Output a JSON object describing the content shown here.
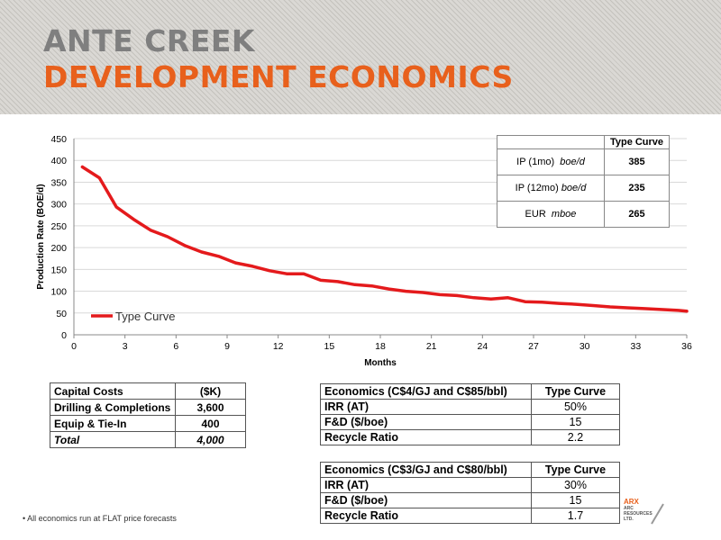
{
  "header": {
    "title_line1": "ANTE CREEK",
    "title_line2": "DEVELOPMENT ECONOMICS"
  },
  "colors": {
    "title_gray": "#7f7f7f",
    "title_orange": "#e8601c",
    "series_red": "#e41a1c"
  },
  "chart_data": {
    "type": "line",
    "xlabel": "Months",
    "ylabel": "Production Rate (BOE/d)",
    "xlim": [
      0,
      36
    ],
    "ylim": [
      0,
      450
    ],
    "xticks": [
      0,
      3,
      6,
      9,
      12,
      15,
      18,
      21,
      24,
      27,
      30,
      33,
      36
    ],
    "yticks": [
      0,
      50,
      100,
      150,
      200,
      250,
      300,
      350,
      400,
      450
    ],
    "grid": "horizontal",
    "legend": "bottom-left",
    "series": [
      {
        "name": "Type Curve",
        "x": [
          0.5,
          1.5,
          2.5,
          3.5,
          4.5,
          5.5,
          6.5,
          7.5,
          8.5,
          9.5,
          10.5,
          11.5,
          12.5,
          13.5,
          14.5,
          15.5,
          16.5,
          17.5,
          18.5,
          19.5,
          20.5,
          21.5,
          22.5,
          23.5,
          24.5,
          25.5,
          26.5,
          27.5,
          28.5,
          29.5,
          30.5,
          31.5,
          32.5,
          33.5,
          34.5,
          35.5,
          36
        ],
        "values": [
          385,
          360,
          293,
          265,
          240,
          225,
          205,
          190,
          180,
          165,
          157,
          147,
          140,
          140,
          125,
          122,
          115,
          112,
          105,
          100,
          97,
          92,
          90,
          85,
          82,
          85,
          76,
          75,
          72,
          70,
          67,
          64,
          62,
          60,
          58,
          56,
          54
        ]
      }
    ]
  },
  "type_curve_table": {
    "header": "Type Curve",
    "rows": [
      {
        "label": "IP (1mo)",
        "unit": "boe/d",
        "value": "385"
      },
      {
        "label": "IP (12mo)",
        "unit": "boe/d",
        "value": "235"
      },
      {
        "label": "EUR",
        "unit": "mboe",
        "value": "265"
      }
    ]
  },
  "capital_table": {
    "header_label": "Capital Costs",
    "header_unit": "($K)",
    "rows": [
      {
        "label": "Drilling & Completions",
        "value": "3,600"
      },
      {
        "label": "Equip & Tie-In",
        "value": "400"
      }
    ],
    "total_label": "Total",
    "total_value": "4,000"
  },
  "economics_tables": [
    {
      "header_label": "Economics  (C$4/GJ and C$85/bbl)",
      "header_value": "Type Curve",
      "rows": [
        {
          "label": "IRR (AT)",
          "value": "50%"
        },
        {
          "label": "F&D ($/boe)",
          "value": "15"
        },
        {
          "label": "Recycle Ratio",
          "value": "2.2"
        }
      ]
    },
    {
      "header_label": "Economics  (C$3/GJ and C$80/bbl)",
      "header_value": "Type Curve",
      "rows": [
        {
          "label": "IRR (AT)",
          "value": "30%"
        },
        {
          "label": "F&D ($/boe)",
          "value": "15"
        },
        {
          "label": "Recycle Ratio",
          "value": "1.7"
        }
      ]
    }
  ],
  "footnote": "• All economics run at FLAT price forecasts",
  "logo": {
    "name": "ARX",
    "subtitle": "ARC RESOURCES LTD."
  }
}
